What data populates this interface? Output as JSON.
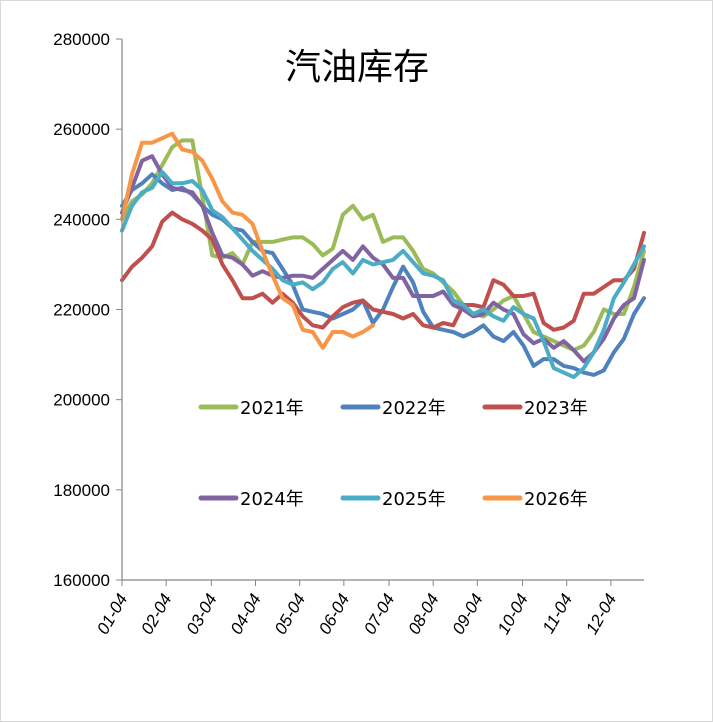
{
  "chart_data": {
    "type": "line",
    "title": "汽油库存",
    "xlabel": "",
    "ylabel": "",
    "ylim": [
      160000,
      280000
    ],
    "yticks": [
      160000,
      180000,
      200000,
      220000,
      240000,
      260000,
      280000
    ],
    "ytick_labels": [
      "160000",
      "180000",
      "200000",
      "220000",
      "240000",
      "260000",
      "280000"
    ],
    "x_unit": "week",
    "xlim": [
      1,
      53
    ],
    "xticks": [
      1,
      5.4,
      9.9,
      14.3,
      18.7,
      23.1,
      27.6,
      32,
      36.4,
      40.9,
      45.3,
      49.7
    ],
    "xtick_labels": [
      "01-04",
      "02-04",
      "03-04",
      "04-04",
      "05-04",
      "06-04",
      "07-04",
      "08-04",
      "09-04",
      "10-04",
      "11-04",
      "12-04"
    ],
    "grid": false,
    "legend_position": "inside-center",
    "series": [
      {
        "name": "2021年",
        "color": "#9bbb59",
        "x": [
          1,
          2,
          3,
          4,
          5,
          6,
          7,
          8,
          9,
          10,
          11,
          12,
          13,
          14,
          15,
          16,
          17,
          18,
          19,
          20,
          21,
          22,
          23,
          24,
          25,
          26,
          27,
          28,
          29,
          30,
          31,
          32,
          33,
          34,
          35,
          36,
          37,
          38,
          39,
          40,
          41,
          42,
          43,
          44,
          45,
          46,
          47,
          48,
          49,
          50,
          51,
          52,
          53
        ],
        "values": [
          240000,
          244000,
          245500,
          248000,
          252000,
          256000,
          257500,
          257500,
          245000,
          232000,
          231500,
          232500,
          230000,
          235000,
          235000,
          235000,
          235500,
          236000,
          236000,
          234500,
          232000,
          233500,
          241000,
          243000,
          240000,
          241000,
          235000,
          236000,
          236000,
          233000,
          229000,
          228000,
          226000,
          224000,
          221000,
          219000,
          218500,
          220000,
          222000,
          223000,
          219000,
          215000,
          214000,
          213000,
          212000,
          211000,
          212000,
          215000,
          220000,
          219000,
          219000,
          225000,
          233000
        ]
      },
      {
        "name": "2022年",
        "color": "#4f81bd",
        "x": [
          1,
          2,
          3,
          4,
          5,
          6,
          7,
          8,
          9,
          10,
          11,
          12,
          13,
          14,
          15,
          16,
          17,
          18,
          19,
          20,
          21,
          22,
          23,
          24,
          25,
          26,
          27,
          28,
          29,
          30,
          31,
          32,
          33,
          34,
          35,
          36,
          37,
          38,
          39,
          40,
          41,
          42,
          43,
          44,
          45,
          46,
          47,
          48,
          49,
          50,
          51,
          52,
          53
        ],
        "values": [
          243000,
          246500,
          248000,
          250000,
          248000,
          246500,
          247000,
          245500,
          243000,
          241000,
          240000,
          238000,
          237500,
          235000,
          233000,
          232500,
          229000,
          225500,
          220000,
          219500,
          219000,
          218000,
          219000,
          220000,
          222000,
          217000,
          220000,
          225000,
          229500,
          226000,
          219500,
          216000,
          215500,
          215000,
          214000,
          215000,
          216500,
          214000,
          213000,
          215000,
          212000,
          207500,
          209000,
          209000,
          207500,
          207000,
          206000,
          205500,
          206500,
          210500,
          213500,
          219000,
          222500
        ]
      },
      {
        "name": "2023年",
        "color": "#c0504d",
        "x": [
          1,
          2,
          3,
          4,
          5,
          6,
          7,
          8,
          9,
          10,
          11,
          12,
          13,
          14,
          15,
          16,
          17,
          18,
          19,
          20,
          21,
          22,
          23,
          24,
          25,
          26,
          27,
          28,
          29,
          30,
          31,
          32,
          33,
          34,
          35,
          36,
          37,
          38,
          39,
          40,
          41,
          42,
          43,
          44,
          45,
          46,
          47,
          48,
          49,
          50,
          51,
          52,
          53
        ],
        "values": [
          226500,
          229500,
          231500,
          234000,
          239500,
          241500,
          240000,
          239000,
          237500,
          235500,
          230000,
          226500,
          222500,
          222500,
          223500,
          221500,
          223500,
          221500,
          218500,
          216500,
          216000,
          218500,
          220500,
          221500,
          222000,
          220000,
          219500,
          219000,
          218000,
          219000,
          216500,
          216000,
          217000,
          216500,
          221000,
          221000,
          220500,
          226500,
          225500,
          223000,
          223000,
          223500,
          217000,
          215500,
          216000,
          217500,
          223500,
          223500,
          225000,
          226500,
          226500,
          229000,
          237000
        ]
      },
      {
        "name": "2024年",
        "color": "#8064a2",
        "x": [
          1,
          2,
          3,
          4,
          5,
          6,
          7,
          8,
          9,
          10,
          11,
          12,
          13,
          14,
          15,
          16,
          17,
          18,
          19,
          20,
          21,
          22,
          23,
          24,
          25,
          26,
          27,
          28,
          29,
          30,
          31,
          32,
          33,
          34,
          35,
          36,
          37,
          38,
          39,
          40,
          41,
          42,
          43,
          44,
          45,
          46,
          47,
          48,
          49,
          50,
          51,
          52,
          53
        ],
        "values": [
          241500,
          247000,
          253000,
          254000,
          250000,
          247000,
          246500,
          246000,
          243000,
          237000,
          232000,
          231500,
          230000,
          227500,
          228500,
          227500,
          227000,
          227500,
          227500,
          227000,
          229000,
          231000,
          233000,
          231000,
          234000,
          231500,
          230000,
          227000,
          227000,
          223000,
          223000,
          223000,
          224000,
          221000,
          220000,
          218500,
          219000,
          221500,
          220000,
          219000,
          214500,
          212500,
          213500,
          211500,
          213000,
          211000,
          208500,
          210500,
          213500,
          218000,
          221000,
          222500,
          231000
        ]
      },
      {
        "name": "2025年",
        "color": "#4bacc6",
        "x": [
          1,
          2,
          3,
          4,
          5,
          6,
          7,
          8,
          9,
          10,
          11,
          12,
          13,
          14,
          15,
          16,
          17,
          18,
          19,
          20,
          21,
          22,
          23,
          24,
          25,
          26,
          27,
          28,
          29,
          30,
          31,
          32,
          33,
          34,
          35,
          36,
          37,
          38,
          39,
          40,
          41,
          42,
          43,
          44,
          45,
          46,
          47,
          48,
          49,
          50,
          51,
          52,
          53
        ],
        "values": [
          237500,
          243000,
          246000,
          247000,
          250500,
          248000,
          248000,
          248500,
          246500,
          242000,
          240500,
          238000,
          235500,
          233000,
          231000,
          229000,
          226500,
          225500,
          226000,
          224500,
          226000,
          229000,
          230500,
          228000,
          231000,
          230000,
          230500,
          231000,
          233000,
          230500,
          228000,
          227500,
          226500,
          222000,
          221000,
          219000,
          220000,
          218500,
          217500,
          220500,
          219000,
          218000,
          213000,
          207000,
          206000,
          205000,
          207000,
          210500,
          215500,
          222500,
          226000,
          230000,
          234000
        ]
      },
      {
        "name": "2026年",
        "color": "#f79646",
        "x": [
          1,
          2,
          3,
          4,
          5,
          6,
          7,
          8,
          9,
          10,
          11,
          12,
          13,
          14,
          15,
          16,
          17,
          18,
          19,
          20,
          21,
          22,
          23,
          24,
          25,
          26
        ],
        "values": [
          240000,
          250000,
          257000,
          257000,
          258000,
          259000,
          255500,
          255000,
          253000,
          249000,
          244000,
          241500,
          241000,
          239000,
          233000,
          227500,
          222500,
          221000,
          215500,
          215000,
          211500,
          215000,
          215000,
          214000,
          215000,
          216500
        ]
      }
    ]
  }
}
